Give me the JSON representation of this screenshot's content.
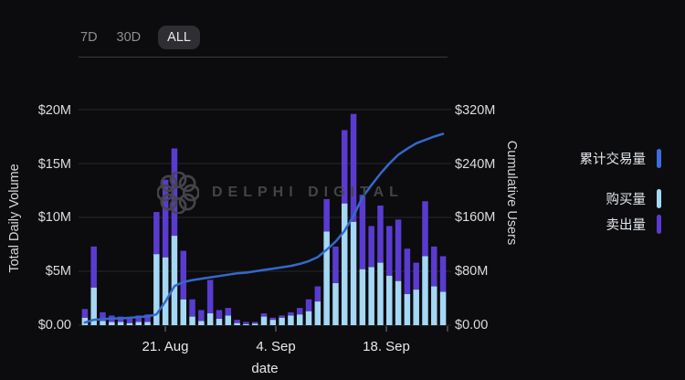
{
  "time_range": {
    "options": [
      "7D",
      "30D",
      "ALL"
    ],
    "selected": "ALL"
  },
  "watermark": {
    "text": "DELPHI DIGITAL"
  },
  "legend": {
    "items": [
      {
        "label": "累计交易量",
        "color": "#3f6be0",
        "series": "cumulative-line"
      },
      {
        "label": "购买量",
        "color": "#a4d8f4",
        "series": "buy-bars"
      },
      {
        "label": "卖出量",
        "color": "#5a3bd0",
        "series": "sell-bars"
      }
    ]
  },
  "chart_data": {
    "type": "combo",
    "description": "stacked daily volume bars (buy + sell) with cumulative line on secondary axis",
    "x_axis": {
      "title": "date",
      "tick_labels": [
        "21. Aug",
        "4. Sep",
        "18. Sep"
      ]
    },
    "left_axis": {
      "title": "Total Daily Volume",
      "tick_labels": [
        "$0.00",
        "$5M",
        "$10M",
        "$15M",
        "$20M"
      ],
      "tick_values": [
        0,
        5,
        10,
        15,
        20
      ],
      "range": [
        0,
        20
      ]
    },
    "right_axis": {
      "title": "Cumulative Users",
      "tick_labels": [
        "$0.00",
        "$80M",
        "$160M",
        "$240M",
        "$320M"
      ],
      "tick_values": [
        0,
        80,
        160,
        240,
        320
      ],
      "range": [
        0,
        320
      ]
    },
    "series": [
      {
        "name": "购买量",
        "type": "bar",
        "stack": "volume",
        "axis": "left",
        "color": "#a4d8f4",
        "values": [
          0.7,
          3.5,
          0.4,
          0.3,
          0.3,
          0.2,
          0.3,
          0.3,
          6.6,
          6.3,
          8.3,
          2.4,
          0.8,
          0.4,
          1.1,
          0.6,
          0.9,
          0.2,
          0.1,
          0.15,
          0.8,
          0.5,
          0.7,
          0.9,
          1.0,
          1.3,
          2.2,
          8.7,
          3.9,
          11.3,
          9.6,
          5.2,
          5.4,
          5.8,
          4.6,
          4.1,
          2.9,
          3.3,
          6.4,
          3.6,
          3.1
        ]
      },
      {
        "name": "卖出量",
        "type": "bar",
        "stack": "volume",
        "axis": "left",
        "color": "#5a3bd0",
        "values": [
          0.8,
          3.8,
          0.8,
          0.6,
          0.5,
          0.5,
          0.6,
          0.7,
          3.9,
          7.2,
          8.1,
          4.5,
          1.6,
          1.0,
          3.1,
          0.8,
          0.7,
          0.3,
          0.2,
          0.15,
          0.3,
          0.2,
          0.2,
          0.3,
          0.6,
          1.1,
          1.4,
          3.0,
          3.4,
          6.8,
          10.0,
          6.9,
          3.8,
          5.3,
          4.6,
          5.7,
          4.2,
          2.5,
          5.1,
          3.7,
          3.3
        ]
      },
      {
        "name": "累计交易量",
        "type": "line",
        "axis": "right",
        "color": "#3468cb",
        "values": [
          4,
          8,
          9,
          10,
          10,
          11,
          12,
          13,
          16,
          35,
          58,
          64,
          67,
          69,
          71,
          73,
          75,
          77,
          78,
          80,
          82,
          84,
          86,
          88,
          91,
          95,
          101,
          112,
          124,
          140,
          162,
          190,
          208,
          225,
          240,
          253,
          262,
          270,
          275,
          280,
          284
        ]
      }
    ],
    "grid": true,
    "legend_position": "right"
  }
}
